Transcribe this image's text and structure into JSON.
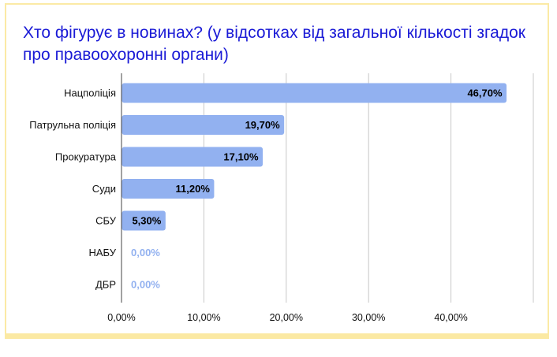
{
  "chart_data": {
    "type": "bar",
    "orientation": "horizontal",
    "title": "Хто фігурує в новинах? (у відсотках від загальної кількості згадок про правоохоронні органи)",
    "categories": [
      "Нацполіція",
      "Патрульна поліція",
      "Прокуратура",
      "Суди",
      "СБУ",
      "НАБУ",
      "ДБР"
    ],
    "values": [
      46.7,
      19.7,
      17.1,
      11.2,
      5.3,
      0.0,
      0.0
    ],
    "data_labels": [
      "46,70%",
      "19,70%",
      "17,10%",
      "11,20%",
      "5,30%",
      "0,00%",
      "0,00%"
    ],
    "xlim": [
      0,
      50
    ],
    "x_ticks": [
      0,
      10,
      20,
      30,
      40
    ],
    "x_tick_labels": [
      "0,00%",
      "10,00%",
      "20,00%",
      "30,00%",
      "40,00%"
    ],
    "grid": true,
    "legend": "none",
    "colors": {
      "bar": "#92b1f0",
      "title": "#1a1ad6",
      "label": "#000000",
      "zero_label": "#92b1f0",
      "gridline": "#c8c8c8",
      "frame": "#fbeaa5"
    }
  }
}
